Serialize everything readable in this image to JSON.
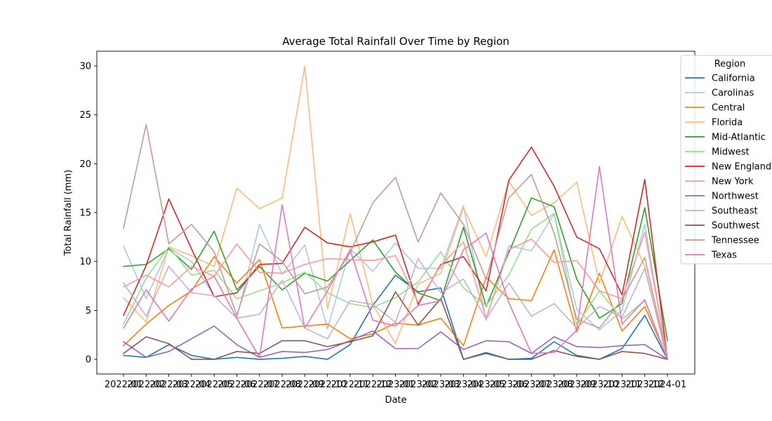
{
  "chart_data": {
    "type": "line",
    "title": "Average Total Rainfall Over Time by Region",
    "xlabel": "Date",
    "ylabel": "Total Rainfall (mm)",
    "ylim": [
      -1.5,
      31.5
    ],
    "yticks": [
      0,
      5,
      10,
      15,
      20,
      25,
      30
    ],
    "x": [
      "2022-01",
      "2022-02",
      "2022-03",
      "2022-04",
      "2022-05",
      "2022-06",
      "2022-07",
      "2022-08",
      "2022-09",
      "2022-10",
      "2022-11",
      "2022-12",
      "2023-01",
      "2023-02",
      "2023-03",
      "2023-04",
      "2023-05",
      "2023-06",
      "2023-07",
      "2023-08",
      "2023-09",
      "2023-10",
      "2023-11",
      "2023-12",
      "2024-01"
    ],
    "xtick_labels": [
      "2022-01",
      "2022-02",
      "2022-03",
      "2022-04",
      "2022-05",
      "2022-06",
      "2022-07",
      "2022-08",
      "2022-09",
      "2022-10",
      "2022-11",
      "2022-12",
      "2023-01",
      "2023-02",
      "2023-03",
      "2023-04",
      "2023-05",
      "2023-06",
      "2023-07",
      "2023-08",
      "2023-09",
      "2023-10",
      "2023-11",
      "2023-12",
      "2024-01"
    ],
    "grid": false,
    "legend": {
      "title": "Region",
      "placement": "right, partly outside"
    },
    "series": [
      {
        "name": "California",
        "color": "#1f77b4",
        "values": [
          0.4,
          0.2,
          1.5,
          0.4,
          0.0,
          0.2,
          0.0,
          0.1,
          0.3,
          0.0,
          1.5,
          5.5,
          8.6,
          6.9,
          7.3,
          0.0,
          0.7,
          0.0,
          0.1,
          1.8,
          0.4,
          0.0,
          1.1,
          4.5,
          0.0
        ]
      },
      {
        "name": "Carolinas",
        "color": "#aec7e8",
        "values": [
          11.6,
          6.2,
          11.4,
          10.0,
          6.5,
          4.2,
          13.8,
          8.7,
          11.7,
          3.1,
          11.3,
          9.0,
          11.9,
          9.3,
          9.3,
          15.7,
          4.0,
          11.6,
          11.1,
          14.9,
          5.1,
          3.0,
          5.0,
          13.8,
          0.0
        ]
      },
      {
        "name": "Central",
        "color": "#ff7f0e",
        "values": [
          1.4,
          3.6,
          5.5,
          7.0,
          10.5,
          7.8,
          10.2,
          3.2,
          3.4,
          3.6,
          2.1,
          2.6,
          3.7,
          3.5,
          4.2,
          1.4,
          8.4,
          6.2,
          6.0,
          11.2,
          2.8,
          8.8,
          2.9,
          5.4,
          0.1
        ]
      },
      {
        "name": "Florida",
        "color": "#ffbb78",
        "values": [
          6.3,
          3.8,
          11.5,
          10.6,
          9.5,
          17.5,
          15.4,
          16.5,
          30.0,
          5.2,
          14.9,
          5.6,
          1.6,
          7.7,
          8.8,
          15.5,
          10.5,
          18.2,
          14.7,
          16.0,
          18.1,
          7.8,
          14.6,
          9.5,
          0.1
        ]
      },
      {
        "name": "Mid-Atlantic",
        "color": "#2ca02c",
        "values": [
          9.5,
          9.7,
          11.3,
          9.2,
          13.1,
          7.1,
          9.5,
          7.1,
          8.8,
          8.0,
          10.1,
          12.2,
          8.9,
          6.8,
          6.0,
          13.5,
          5.4,
          10.9,
          16.5,
          15.6,
          8.2,
          4.2,
          5.7,
          15.5,
          1.9
        ]
      },
      {
        "name": "Midwest",
        "color": "#98df8a",
        "values": [
          3.6,
          8.3,
          11.5,
          8.6,
          9.1,
          6.2,
          7.0,
          7.8,
          8.9,
          6.8,
          5.7,
          5.3,
          6.3,
          7.9,
          11.0,
          7.3,
          5.5,
          8.6,
          13.3,
          14.9,
          3.5,
          7.0,
          4.1,
          6.0,
          0.0
        ]
      },
      {
        "name": "New England",
        "color": "#d62728",
        "values": [
          4.5,
          9.6,
          16.4,
          11.3,
          6.4,
          6.8,
          9.7,
          9.8,
          13.5,
          11.9,
          11.5,
          12.0,
          12.7,
          5.6,
          9.7,
          10.5,
          7.0,
          18.3,
          21.7,
          17.7,
          12.5,
          11.3,
          6.6,
          18.4,
          0.0
        ]
      },
      {
        "name": "New York",
        "color": "#ff9896",
        "values": [
          7.4,
          8.6,
          7.4,
          9.5,
          8.5,
          11.8,
          8.9,
          8.8,
          9.7,
          10.3,
          10.2,
          10.1,
          10.6,
          5.8,
          9.6,
          12.0,
          4.2,
          11.2,
          12.3,
          9.9,
          10.1,
          7.0,
          6.2,
          13.0,
          0.1
        ]
      },
      {
        "name": "Northwest",
        "color": "#9467bd",
        "values": [
          1.8,
          0.2,
          0.8,
          2.1,
          3.4,
          1.5,
          0.2,
          0.8,
          0.7,
          1.0,
          1.9,
          2.9,
          1.1,
          1.1,
          2.8,
          1.0,
          1.9,
          1.8,
          0.6,
          2.3,
          1.3,
          1.2,
          1.4,
          1.5,
          0.0
        ]
      },
      {
        "name": "Southeast",
        "color": "#c5b0d5",
        "values": [
          7.8,
          4.4,
          9.5,
          6.8,
          6.5,
          4.2,
          4.6,
          8.1,
          3.2,
          2.1,
          6.0,
          5.6,
          3.8,
          10.3,
          6.8,
          8.2,
          4.1,
          7.8,
          4.4,
          5.7,
          3.2,
          5.4,
          4.3,
          9.3,
          0.0
        ]
      },
      {
        "name": "Southwest",
        "color": "#8c564b",
        "values": [
          0.6,
          2.3,
          1.6,
          0.0,
          0.0,
          0.8,
          0.6,
          1.9,
          1.9,
          1.3,
          1.8,
          2.4,
          6.9,
          3.5,
          6.2,
          0.0,
          0.6,
          0.0,
          0.0,
          0.9,
          0.3,
          0.0,
          0.8,
          0.6,
          0.0
        ]
      },
      {
        "name": "Tennessee",
        "color": "#c49c94",
        "values": [
          13.4,
          24.0,
          11.8,
          13.8,
          11.0,
          4.5,
          11.8,
          10.0,
          6.7,
          7.4,
          10.9,
          16.0,
          18.6,
          12.0,
          17.0,
          13.8,
          8.2,
          16.5,
          18.9,
          12.9,
          4.1,
          3.2,
          6.1,
          10.4,
          0.1
        ]
      },
      {
        "name": "Texas",
        "color": "#e377c2",
        "values": [
          3.2,
          7.1,
          3.9,
          7.2,
          8.5,
          4.2,
          0.2,
          15.8,
          3.2,
          7.0,
          11.2,
          4.0,
          3.4,
          5.5,
          6.0,
          11.2,
          12.9,
          5.8,
          0.6,
          0.7,
          3.0,
          19.7,
          3.6,
          6.1,
          0.0
        ]
      }
    ]
  }
}
